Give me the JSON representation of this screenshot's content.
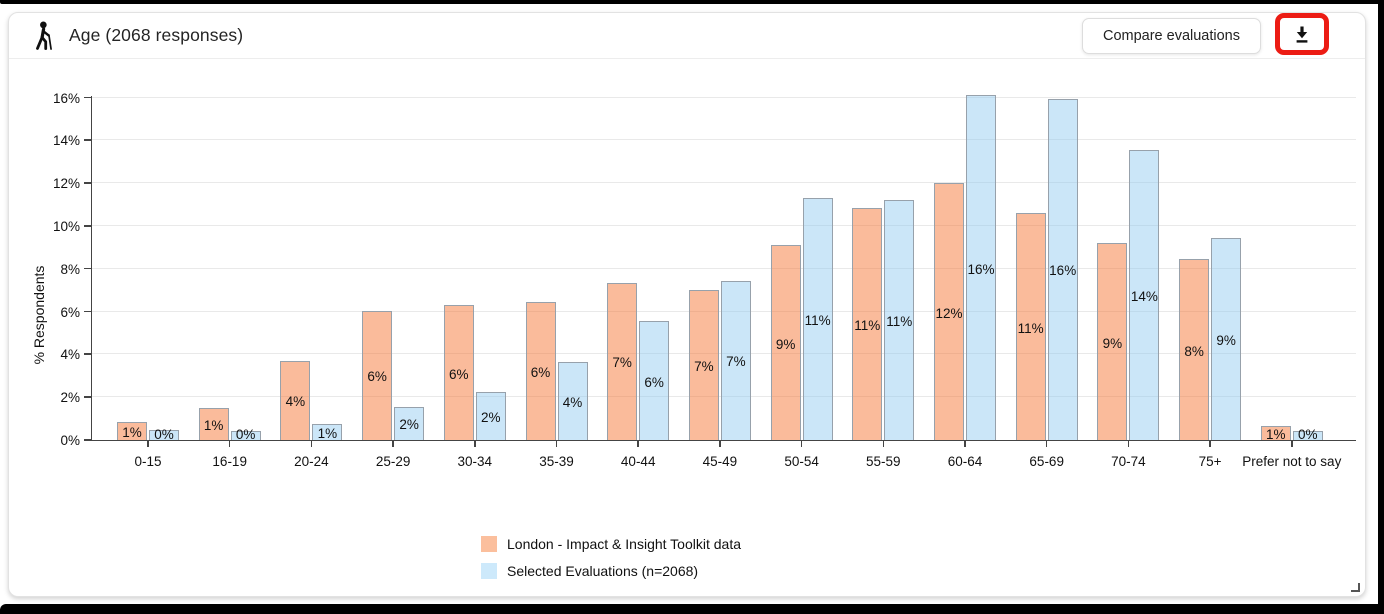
{
  "header": {
    "title": "Age (2068 responses)",
    "compare_button_label": "Compare evaluations"
  },
  "annotation": {
    "highlight_color": "#ec1c14",
    "highlighted_control": "download-button"
  },
  "chart_data": {
    "type": "bar",
    "title": "Age (2068 responses)",
    "ylabel": "% Respondents",
    "ylim": [
      0,
      16
    ],
    "ytick_step": 2,
    "ytick_suffix": "%",
    "grid": true,
    "legend_position": "bottom-center",
    "categories": [
      "0-15",
      "16-19",
      "20-24",
      "25-29",
      "30-34",
      "35-39",
      "40-44",
      "45-49",
      "50-54",
      "55-59",
      "60-64",
      "65-69",
      "70-74",
      "75+",
      "Prefer not to say"
    ],
    "series": [
      {
        "name": "London - Impact & Insight Toolkit data",
        "fill": "rgba(246,120,55,0.5)",
        "legend_color": "#fbbf9d",
        "border": "#97a1ab",
        "values": [
          0.85,
          1.5,
          3.7,
          6.05,
          6.3,
          6.45,
          7.35,
          7.0,
          9.1,
          10.85,
          12.0,
          10.6,
          9.2,
          8.45,
          0.65
        ],
        "labels": [
          "1%",
          "1%",
          "4%",
          "6%",
          "6%",
          "6%",
          "7%",
          "7%",
          "9%",
          "11%",
          "12%",
          "11%",
          "9%",
          "8%",
          "1%"
        ]
      },
      {
        "name": "Selected Evaluations (n=2068)",
        "fill": "rgba(140,200,240,0.45)",
        "legend_color": "#cde9fb",
        "border": "#97a1ab",
        "values": [
          0.45,
          0.4,
          0.75,
          1.55,
          2.25,
          3.65,
          5.55,
          7.45,
          11.3,
          11.2,
          16.1,
          15.95,
          13.55,
          9.45,
          0.4
        ],
        "labels": [
          "0%",
          "0%",
          "1%",
          "2%",
          "2%",
          "4%",
          "6%",
          "7%",
          "11%",
          "11%",
          "16%",
          "16%",
          "14%",
          "9%",
          "0%"
        ]
      }
    ]
  }
}
